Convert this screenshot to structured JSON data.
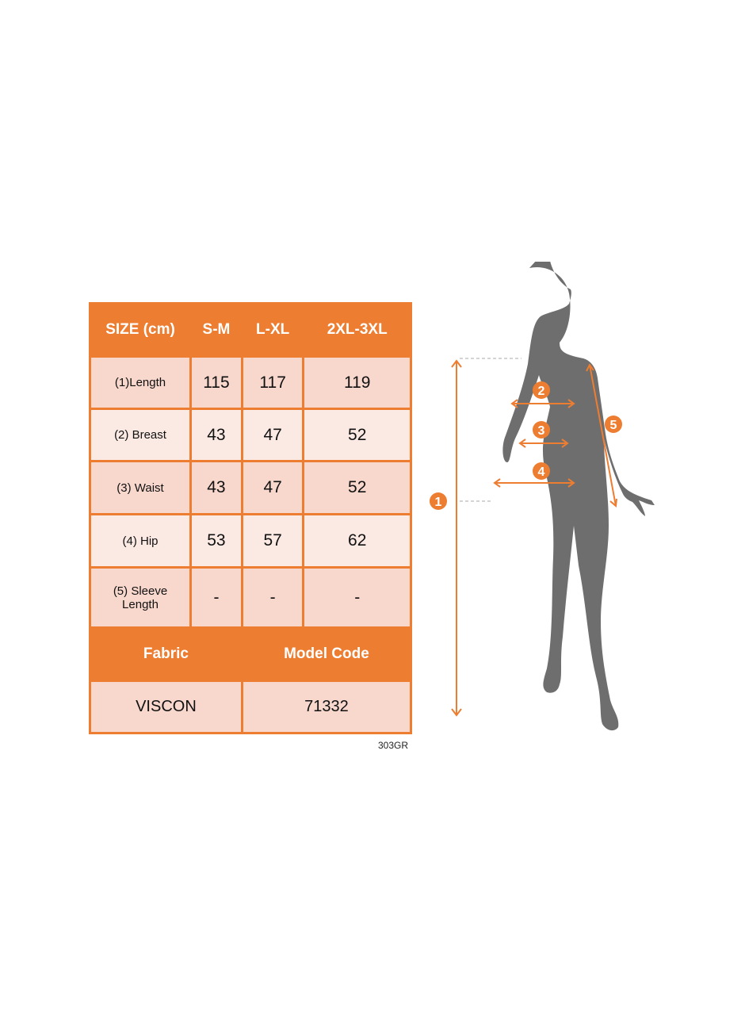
{
  "colors": {
    "accent": "#ed7d31",
    "row_dark": "#f8d7cd",
    "row_light": "#fbeae4",
    "silhouette": "#6e6e6e"
  },
  "table": {
    "header": [
      "SIZE (cm)",
      "S-M",
      "L-XL",
      "2XL-3XL"
    ],
    "rows": [
      {
        "label": "(1)Length",
        "values": [
          "115",
          "117",
          "119"
        ]
      },
      {
        "label": "(2) Breast",
        "values": [
          "43",
          "47",
          "52"
        ]
      },
      {
        "label": "(3) Waist",
        "values": [
          "43",
          "47",
          "52"
        ]
      },
      {
        "label": "(4) Hip",
        "values": [
          "53",
          "57",
          "62"
        ]
      },
      {
        "label": "(5) Sleeve Length",
        "values": [
          "-",
          "-",
          "-"
        ]
      }
    ],
    "footer_header": [
      "Fabric",
      "Model Code"
    ],
    "footer_values": [
      "VISCON",
      "71332"
    ]
  },
  "product_code": "303GR",
  "figure": {
    "markers": [
      "1",
      "2",
      "3",
      "4",
      "5"
    ]
  }
}
